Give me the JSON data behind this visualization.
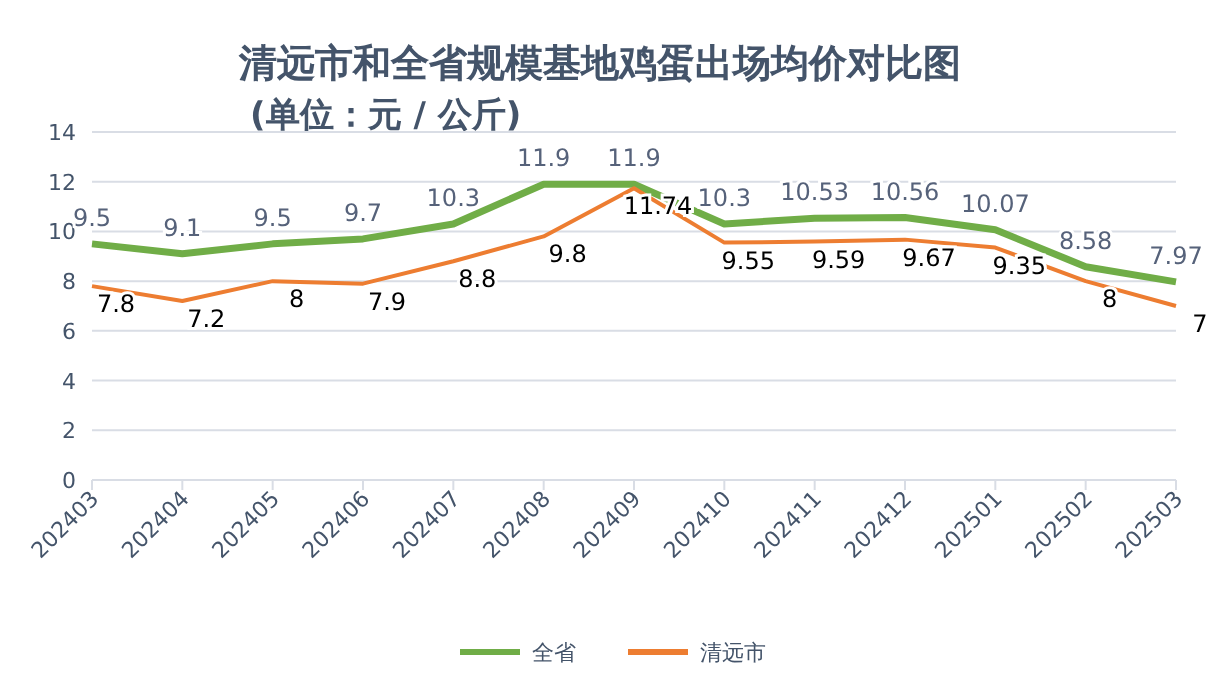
{
  "chart_data": {
    "type": "line",
    "title": "清远市和全省规模基地鸡蛋出场均价对比图",
    "subtitle": "(单位：元 / 公斤)",
    "categories": [
      "202403",
      "202404",
      "202405",
      "202406",
      "202407",
      "202408",
      "202409",
      "202410",
      "202411",
      "202412",
      "202501",
      "202502",
      "202503"
    ],
    "series": [
      {
        "name": "全省",
        "color": "#70ad47",
        "values": [
          9.5,
          9.1,
          9.5,
          9.7,
          10.3,
          11.9,
          11.9,
          10.3,
          10.53,
          10.56,
          10.07,
          8.58,
          7.97
        ]
      },
      {
        "name": "清远市",
        "color": "#ed7d31",
        "values": [
          7.8,
          7.2,
          8,
          7.9,
          8.8,
          9.8,
          11.74,
          9.55,
          9.59,
          9.67,
          9.35,
          8,
          7
        ]
      }
    ],
    "ylim": [
      0,
      14
    ],
    "yticks": [
      0,
      2,
      4,
      6,
      8,
      10,
      12,
      14
    ],
    "grid": "y",
    "legend": "bottom",
    "data_labels": true,
    "marker": "none",
    "line_style": "solid"
  }
}
